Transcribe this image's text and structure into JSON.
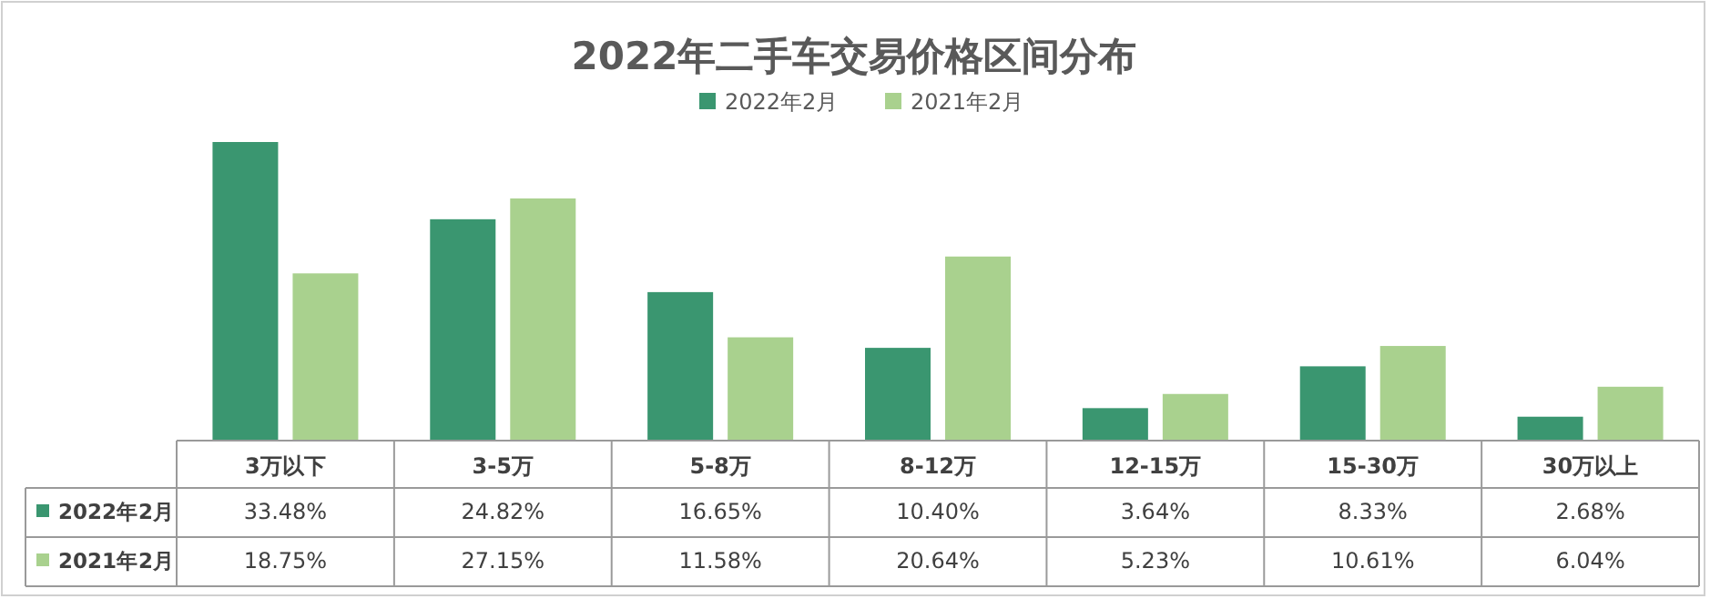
{
  "chart_data": {
    "type": "bar",
    "title": "2022年二手车交易价格区间分布",
    "categories": [
      "3万以下",
      "3-5万",
      "5-8万",
      "8-12万",
      "12-15万",
      "15-30万",
      "30万以上"
    ],
    "series": [
      {
        "name": "2022年2月",
        "color": "#3a9670",
        "values": [
          33.48,
          24.82,
          16.65,
          10.4,
          3.64,
          8.33,
          2.68
        ],
        "value_labels": [
          "33.48%",
          "24.82%",
          "16.65%",
          "10.40%",
          "3.64%",
          "8.33%",
          "2.68%"
        ]
      },
      {
        "name": "2021年2月",
        "color": "#a9d18e",
        "values": [
          18.75,
          27.15,
          11.58,
          20.64,
          5.23,
          10.61,
          6.04
        ],
        "value_labels": [
          "18.75%",
          "27.15%",
          "11.58%",
          "20.64%",
          "5.23%",
          "10.61%",
          "6.04%"
        ]
      }
    ],
    "legend": "top"
  }
}
